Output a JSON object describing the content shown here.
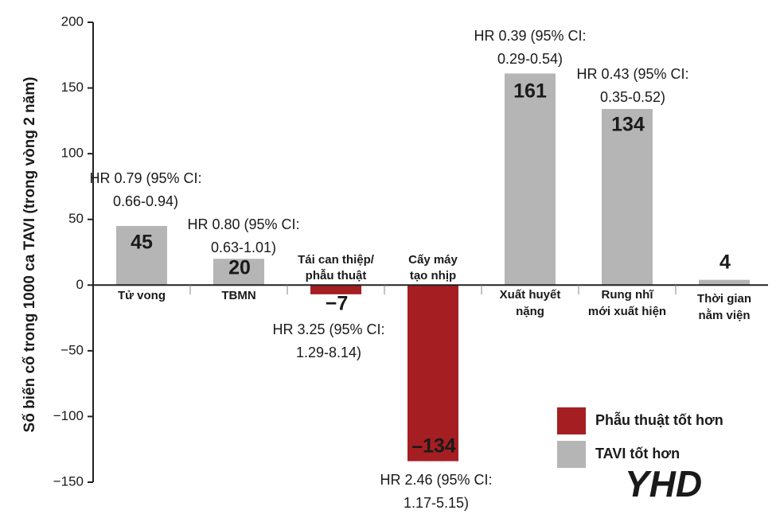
{
  "chart_data": {
    "type": "bar",
    "y_label": "Số biến cố trong 1000 ca TAVI (trong vòng 2 năm)",
    "categories": [
      [
        "Tử vong"
      ],
      [
        "TBMN"
      ],
      [
        "Tái can thiệp/",
        "phẫu thuật"
      ],
      [
        "Cấy máy",
        "tạo nhịp"
      ],
      [
        "Xuất huyết",
        "nặng"
      ],
      [
        "Rung nhĩ",
        "mới xuất hiện"
      ],
      [
        "Thời gian",
        "nằm viện"
      ]
    ],
    "series": [
      {
        "name": "Phẫu thuật tốt hơn",
        "color": "#a51e22",
        "values": [
          null,
          null,
          -7,
          -134,
          null,
          null,
          null
        ],
        "value_labels": [
          null,
          null,
          "−7",
          "–134",
          null,
          null,
          null
        ]
      },
      {
        "name": "TAVI tốt hơn",
        "color": "#b5b5b5",
        "values": [
          45,
          20,
          null,
          null,
          161,
          134,
          4
        ]
      }
    ],
    "annotations": [
      [
        "HR 0.79 (95% CI:",
        "0.66-0.94)"
      ],
      [
        "HR 0.80 (95% CI:",
        "0.63-1.01)"
      ],
      [
        "HR 3.25 (95% CI:",
        "1.29-8.14)"
      ],
      [
        "HR 2.46 (95% CI:",
        "1.17-5.15)"
      ],
      [
        "HR 0.39 (95% CI:",
        "0.29-0.54)"
      ],
      [
        "HR 0.43 (95% CI:",
        "0.35-0.52)"
      ]
    ],
    "ylim": [
      -150,
      200
    ],
    "yticks": [
      200,
      150,
      100,
      50,
      0,
      {
        "value": -50,
        "label": "−50"
      },
      {
        "value": -100,
        "label": "−100"
      },
      {
        "value": -150,
        "label": "−150"
      }
    ],
    "grid": false,
    "legend": "lower right",
    "watermark": "YHD"
  }
}
